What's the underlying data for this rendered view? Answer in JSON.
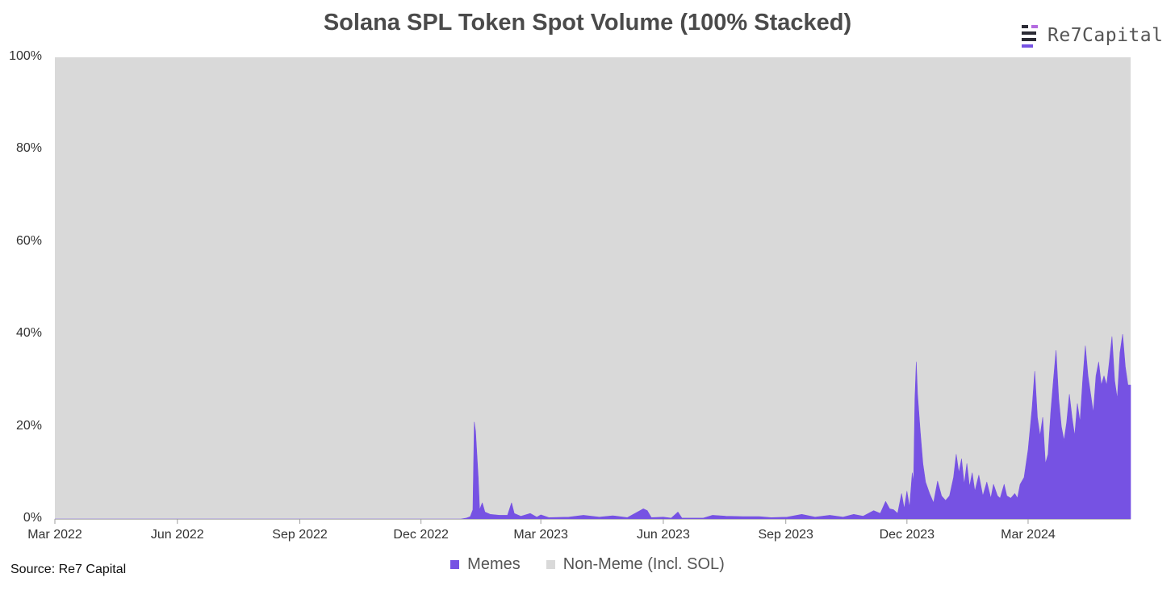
{
  "chart_data": {
    "type": "area",
    "stacked": "100%",
    "title": "Solana SPL Token Spot Volume (100% Stacked)",
    "xlabel": "",
    "ylabel": "",
    "x_range": [
      "2022-03-01",
      "2024-05-17"
    ],
    "ylim": [
      0,
      100
    ],
    "y_ticks": [
      "0%",
      "20%",
      "40%",
      "60%",
      "80%",
      "100%"
    ],
    "y_tick_values": [
      0,
      20,
      40,
      60,
      80,
      100
    ],
    "x_ticks": [
      "Mar 2022",
      "Jun 2022",
      "Sep 2022",
      "Dec 2022",
      "Mar 2023",
      "Jun 2023",
      "Sep 2023",
      "Dec 2023",
      "Mar 2024"
    ],
    "x_tick_dates": [
      "2022-03-01",
      "2022-06-01",
      "2022-09-01",
      "2022-12-01",
      "2023-03-01",
      "2023-06-01",
      "2023-09-01",
      "2023-12-01",
      "2024-03-01"
    ],
    "legend_position": "bottom-center",
    "grid": false,
    "series": [
      {
        "name": "Memes",
        "color": "#7652e3",
        "points": [
          [
            "2022-03-01",
            0
          ],
          [
            "2022-12-31",
            0
          ],
          [
            "2023-01-04",
            0.2
          ],
          [
            "2023-01-07",
            0.5
          ],
          [
            "2023-01-09",
            2
          ],
          [
            "2023-01-10",
            21
          ],
          [
            "2023-01-11",
            19
          ],
          [
            "2023-01-13",
            9
          ],
          [
            "2023-01-14",
            2
          ],
          [
            "2023-01-16",
            3.5
          ],
          [
            "2023-01-18",
            1.5
          ],
          [
            "2023-01-22",
            1
          ],
          [
            "2023-01-29",
            0.8
          ],
          [
            "2023-02-04",
            0.8
          ],
          [
            "2023-02-07",
            3.5
          ],
          [
            "2023-02-09",
            1.2
          ],
          [
            "2023-02-14",
            0.6
          ],
          [
            "2023-02-21",
            1.2
          ],
          [
            "2023-02-26",
            0.4
          ],
          [
            "2023-03-01",
            0.9
          ],
          [
            "2023-03-07",
            0.3
          ],
          [
            "2023-03-22",
            0.4
          ],
          [
            "2023-04-02",
            0.8
          ],
          [
            "2023-04-14",
            0.4
          ],
          [
            "2023-04-24",
            0.7
          ],
          [
            "2023-05-05",
            0.3
          ],
          [
            "2023-05-17",
            2.2
          ],
          [
            "2023-05-20",
            1.8
          ],
          [
            "2023-05-23",
            0.3
          ],
          [
            "2023-06-01",
            0.4
          ],
          [
            "2023-06-07",
            0.2
          ],
          [
            "2023-06-12",
            1.5
          ],
          [
            "2023-06-15",
            0.2
          ],
          [
            "2023-07-01",
            0.2
          ],
          [
            "2023-07-08",
            0.8
          ],
          [
            "2023-07-18",
            0.6
          ],
          [
            "2023-07-31",
            0.5
          ],
          [
            "2023-08-12",
            0.5
          ],
          [
            "2023-08-21",
            0.3
          ],
          [
            "2023-09-02",
            0.4
          ],
          [
            "2023-09-13",
            1.0
          ],
          [
            "2023-09-23",
            0.4
          ],
          [
            "2023-10-04",
            0.8
          ],
          [
            "2023-10-14",
            0.4
          ],
          [
            "2023-10-22",
            1.0
          ],
          [
            "2023-10-29",
            0.6
          ],
          [
            "2023-11-06",
            1.8
          ],
          [
            "2023-11-11",
            1.2
          ],
          [
            "2023-11-15",
            3.8
          ],
          [
            "2023-11-18",
            2.2
          ],
          [
            "2023-11-21",
            2.0
          ],
          [
            "2023-11-24",
            1.2
          ],
          [
            "2023-11-27",
            5.5
          ],
          [
            "2023-11-29",
            2.2
          ],
          [
            "2023-12-01",
            6
          ],
          [
            "2023-12-03",
            2.5
          ],
          [
            "2023-12-05",
            10
          ],
          [
            "2023-12-06",
            8
          ],
          [
            "2023-12-07",
            26
          ],
          [
            "2023-12-08",
            34
          ],
          [
            "2023-12-09",
            27
          ],
          [
            "2023-12-11",
            19
          ],
          [
            "2023-12-13",
            12
          ],
          [
            "2023-12-15",
            8
          ],
          [
            "2023-12-18",
            5.5
          ],
          [
            "2023-12-21",
            3.5
          ],
          [
            "2023-12-24",
            8.2
          ],
          [
            "2023-12-27",
            5
          ],
          [
            "2023-12-30",
            4
          ],
          [
            "2024-01-02",
            5
          ],
          [
            "2024-01-05",
            9
          ],
          [
            "2024-01-07",
            14
          ],
          [
            "2024-01-09",
            10
          ],
          [
            "2024-01-11",
            13
          ],
          [
            "2024-01-13",
            7.5
          ],
          [
            "2024-01-15",
            12
          ],
          [
            "2024-01-17",
            7
          ],
          [
            "2024-01-19",
            10
          ],
          [
            "2024-01-21",
            6
          ],
          [
            "2024-01-24",
            9.5
          ],
          [
            "2024-01-27",
            5
          ],
          [
            "2024-01-30",
            8
          ],
          [
            "2024-02-02",
            4.5
          ],
          [
            "2024-02-04",
            7.5
          ],
          [
            "2024-02-07",
            5
          ],
          [
            "2024-02-09",
            4.5
          ],
          [
            "2024-02-12",
            7.5
          ],
          [
            "2024-02-14",
            5
          ],
          [
            "2024-02-17",
            4.5
          ],
          [
            "2024-02-20",
            5.5
          ],
          [
            "2024-02-22",
            4.5
          ],
          [
            "2024-02-24",
            7.5
          ],
          [
            "2024-02-27",
            9
          ],
          [
            "2024-03-01",
            15
          ],
          [
            "2024-03-04",
            24
          ],
          [
            "2024-03-06",
            32
          ],
          [
            "2024-03-08",
            22
          ],
          [
            "2024-03-10",
            18
          ],
          [
            "2024-03-12",
            22
          ],
          [
            "2024-03-14",
            12
          ],
          [
            "2024-03-16",
            14
          ],
          [
            "2024-03-18",
            23
          ],
          [
            "2024-03-20",
            30
          ],
          [
            "2024-03-22",
            36.5
          ],
          [
            "2024-03-24",
            26
          ],
          [
            "2024-03-26",
            20
          ],
          [
            "2024-03-28",
            17
          ],
          [
            "2024-03-30",
            21
          ],
          [
            "2024-04-01",
            27
          ],
          [
            "2024-04-03",
            22
          ],
          [
            "2024-04-05",
            18
          ],
          [
            "2024-04-07",
            25
          ],
          [
            "2024-04-09",
            21
          ],
          [
            "2024-04-11",
            30
          ],
          [
            "2024-04-13",
            37.5
          ],
          [
            "2024-04-15",
            31
          ],
          [
            "2024-04-17",
            27
          ],
          [
            "2024-04-19",
            23
          ],
          [
            "2024-04-21",
            31
          ],
          [
            "2024-04-23",
            34
          ],
          [
            "2024-04-25",
            29
          ],
          [
            "2024-04-27",
            31
          ],
          [
            "2024-04-29",
            29
          ],
          [
            "2024-05-01",
            34
          ],
          [
            "2024-05-03",
            39.5
          ],
          [
            "2024-05-05",
            30
          ],
          [
            "2024-05-07",
            26
          ],
          [
            "2024-05-09",
            36
          ],
          [
            "2024-05-11",
            40
          ],
          [
            "2024-05-13",
            33
          ],
          [
            "2024-05-15",
            29
          ],
          [
            "2024-05-17",
            29
          ]
        ]
      },
      {
        "name": "Non-Meme (Incl. SOL)",
        "color": "#d9d9d9",
        "note_value": "remainder to 100%"
      }
    ]
  },
  "source": "Source: Re7 Capital",
  "logo": {
    "text": "Re7Capital",
    "icon": "re7-logo-icon"
  }
}
